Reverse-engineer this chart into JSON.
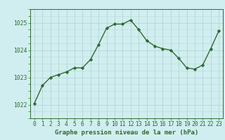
{
  "x": [
    0,
    1,
    2,
    3,
    4,
    5,
    6,
    7,
    8,
    9,
    10,
    11,
    12,
    13,
    14,
    15,
    16,
    17,
    18,
    19,
    20,
    21,
    22,
    23
  ],
  "y": [
    1022.05,
    1022.7,
    1023.0,
    1023.1,
    1023.2,
    1023.35,
    1023.35,
    1023.65,
    1024.2,
    1024.8,
    1024.95,
    1024.95,
    1025.1,
    1024.75,
    1024.35,
    1024.15,
    1024.05,
    1024.0,
    1023.7,
    1023.35,
    1023.3,
    1023.45,
    1024.05,
    1024.7
  ],
  "ylim": [
    1021.5,
    1025.5
  ],
  "yticks": [
    1022,
    1023,
    1024,
    1025
  ],
  "xticks": [
    0,
    1,
    2,
    3,
    4,
    5,
    6,
    7,
    8,
    9,
    10,
    11,
    12,
    13,
    14,
    15,
    16,
    17,
    18,
    19,
    20,
    21,
    22,
    23
  ],
  "line_color": "#2d6a2d",
  "marker": "D",
  "marker_size": 2.2,
  "bg_color": "#d0eef0",
  "grid_color": "#b8d8d8",
  "xlabel": "Graphe pression niveau de la mer (hPa)",
  "xlabel_color": "#2d6a2d",
  "tick_color": "#2d6a2d",
  "axis_label_fontsize": 6.5,
  "tick_fontsize": 5.8,
  "line_width": 1.0
}
